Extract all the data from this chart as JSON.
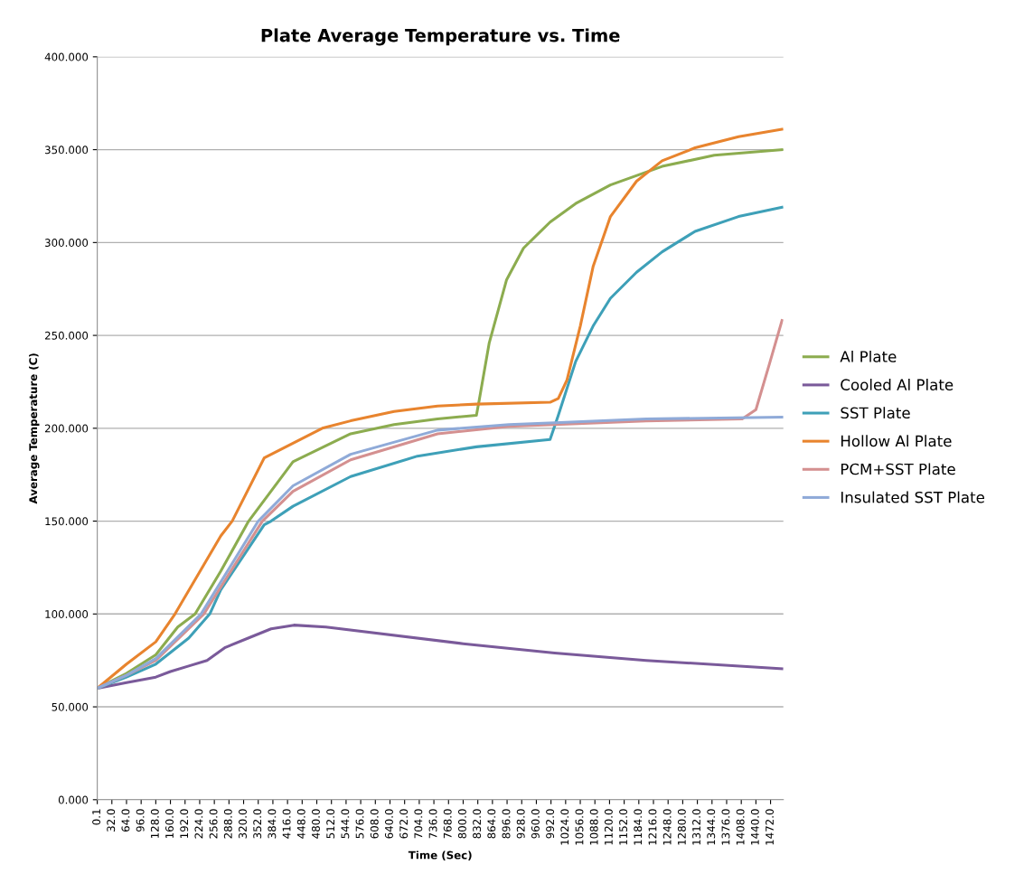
{
  "chart_data": {
    "type": "line",
    "title": "Plate Average Temperature vs. Time",
    "xlabel": "Time (Sec)",
    "ylabel": "Average Temperature (C)",
    "xlim": [
      0.1,
      1500
    ],
    "ylim": [
      0,
      400
    ],
    "xticks": [
      {
        "value": 0.1,
        "label": "0.1"
      },
      {
        "value": 32,
        "label": "32.0"
      },
      {
        "value": 64,
        "label": "64.0"
      },
      {
        "value": 96,
        "label": "96.0"
      },
      {
        "value": 128,
        "label": "128.0"
      },
      {
        "value": 160,
        "label": "160.0"
      },
      {
        "value": 192,
        "label": "192.0"
      },
      {
        "value": 224,
        "label": "224.0"
      },
      {
        "value": 256,
        "label": "256.0"
      },
      {
        "value": 288,
        "label": "288.0"
      },
      {
        "value": 320,
        "label": "320.0"
      },
      {
        "value": 352,
        "label": "352.0"
      },
      {
        "value": 384,
        "label": "384.0"
      },
      {
        "value": 416,
        "label": "416.0"
      },
      {
        "value": 448,
        "label": "448.0"
      },
      {
        "value": 480,
        "label": "480.0"
      },
      {
        "value": 512,
        "label": "512.0"
      },
      {
        "value": 544,
        "label": "544.0"
      },
      {
        "value": 576,
        "label": "576.0"
      },
      {
        "value": 608,
        "label": "608.0"
      },
      {
        "value": 640,
        "label": "640.0"
      },
      {
        "value": 672,
        "label": "672.0"
      },
      {
        "value": 704,
        "label": "704.0"
      },
      {
        "value": 736,
        "label": "736.0"
      },
      {
        "value": 768,
        "label": "768.0"
      },
      {
        "value": 800,
        "label": "800.0"
      },
      {
        "value": 832,
        "label": "832.0"
      },
      {
        "value": 864,
        "label": "864.0"
      },
      {
        "value": 896,
        "label": "896.0"
      },
      {
        "value": 928,
        "label": "928.0"
      },
      {
        "value": 960,
        "label": "960.0"
      },
      {
        "value": 992,
        "label": "992.0"
      },
      {
        "value": 1024,
        "label": "1024.0"
      },
      {
        "value": 1056,
        "label": "1056.0"
      },
      {
        "value": 1088,
        "label": "1088.0"
      },
      {
        "value": 1120,
        "label": "1120.0"
      },
      {
        "value": 1152,
        "label": "1152.0"
      },
      {
        "value": 1184,
        "label": "1184.0"
      },
      {
        "value": 1216,
        "label": "1216.0"
      },
      {
        "value": 1248,
        "label": "1248.0"
      },
      {
        "value": 1280,
        "label": "1280.0"
      },
      {
        "value": 1312,
        "label": "1312.0"
      },
      {
        "value": 1344,
        "label": "1344.0"
      },
      {
        "value": 1376,
        "label": "1376.0"
      },
      {
        "value": 1408,
        "label": "1408.0"
      },
      {
        "value": 1440,
        "label": "1440.0"
      },
      {
        "value": 1472,
        "label": "1472.0"
      }
    ],
    "yticks": [
      {
        "value": 0,
        "label": "0.000"
      },
      {
        "value": 50,
        "label": "50.000"
      },
      {
        "value": 100,
        "label": "100.000"
      },
      {
        "value": 150,
        "label": "150.000"
      },
      {
        "value": 200,
        "label": "200.000"
      },
      {
        "value": 250,
        "label": "250.000"
      },
      {
        "value": 300,
        "label": "300.000"
      },
      {
        "value": 350,
        "label": "350.000"
      },
      {
        "value": 400,
        "label": "400.000"
      }
    ],
    "grid": "y",
    "legend": "right",
    "marker": "none",
    "line_style": "solid",
    "series": [
      {
        "name": "Al Plate",
        "color": "#8cac4f",
        "x": [
          0.1,
          64,
          128,
          176,
          214,
          270,
          331,
          428,
          554,
          649,
          744,
          829,
          835,
          857,
          895,
          932,
          990,
          1046,
          1122,
          1235,
          1349,
          1497
        ],
        "values": [
          60,
          68,
          78,
          93,
          100,
          123,
          150,
          182,
          197,
          202,
          205,
          207,
          215,
          246,
          280,
          297,
          311,
          321,
          331,
          341,
          347,
          350
        ]
      },
      {
        "name": "Cooled Al Plate",
        "color": "#7a5a9a",
        "x": [
          0.1,
          64,
          128,
          160,
          200,
          240,
          280,
          330,
          380,
          430,
          500,
          800,
          1000,
          1200,
          1497
        ],
        "values": [
          60,
          63,
          66,
          69,
          72,
          75,
          82,
          87,
          92,
          94,
          93,
          84,
          79,
          75,
          70.5
        ]
      },
      {
        "name": "SST Plate",
        "color": "#3ea0b8",
        "x": [
          0.1,
          64,
          128,
          200,
          246,
          270,
          365,
          380,
          428,
          554,
          700,
          829,
          990,
          1008,
          1046,
          1084,
          1122,
          1179,
          1235,
          1307,
          1402,
          1497
        ],
        "values": [
          60,
          66,
          73,
          87,
          100,
          113,
          148,
          150,
          158,
          174,
          185,
          190,
          194,
          207,
          236,
          255,
          270,
          284,
          295,
          306,
          314,
          319
        ]
      },
      {
        "name": "Hollow Al Plate",
        "color": "#e8842e",
        "x": [
          0.1,
          64,
          128,
          170,
          270,
          295,
          365,
          428,
          492,
          554,
          649,
          744,
          829,
          990,
          1008,
          1027,
          1056,
          1084,
          1122,
          1179,
          1235,
          1307,
          1402,
          1497
        ],
        "values": [
          60,
          73,
          85,
          100,
          142,
          150,
          184,
          192,
          200,
          204,
          209,
          212,
          213,
          214,
          216,
          226,
          255,
          287,
          314,
          333,
          344,
          351,
          357,
          361
        ]
      },
      {
        "name": "PCM+SST Plate",
        "color": "#d49090",
        "x": [
          0.1,
          64,
          128,
          233,
          361,
          428,
          554,
          744,
          900,
          1000,
          1200,
          1410,
          1440,
          1470,
          1497
        ],
        "values": [
          60,
          67,
          75,
          100,
          150,
          166,
          183,
          197,
          201,
          202,
          204,
          205,
          210,
          235,
          258
        ]
      },
      {
        "name": "Insulated SST Plate",
        "color": "#8faad8",
        "x": [
          0.1,
          64,
          128,
          227,
          352,
          428,
          554,
          744,
          900,
          1000,
          1200,
          1497
        ],
        "values": [
          60,
          67,
          76,
          100,
          150,
          169,
          186,
          199,
          202,
          203,
          205,
          206
        ]
      }
    ]
  }
}
